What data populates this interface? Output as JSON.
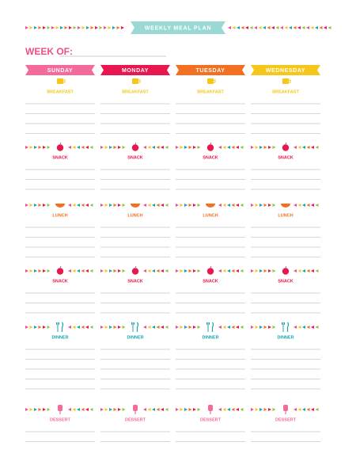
{
  "header": {
    "title": "WEEKLY MEAL PLAN",
    "week_of": "WEEK OF:"
  },
  "days": [
    "SUNDAY",
    "MONDAY",
    "TUESDAY",
    "WEDNESDAY"
  ],
  "meals": [
    "BREAKFAST",
    "SNACK",
    "LUNCH",
    "SNACK",
    "DINNER",
    "DESSERT"
  ]
}
